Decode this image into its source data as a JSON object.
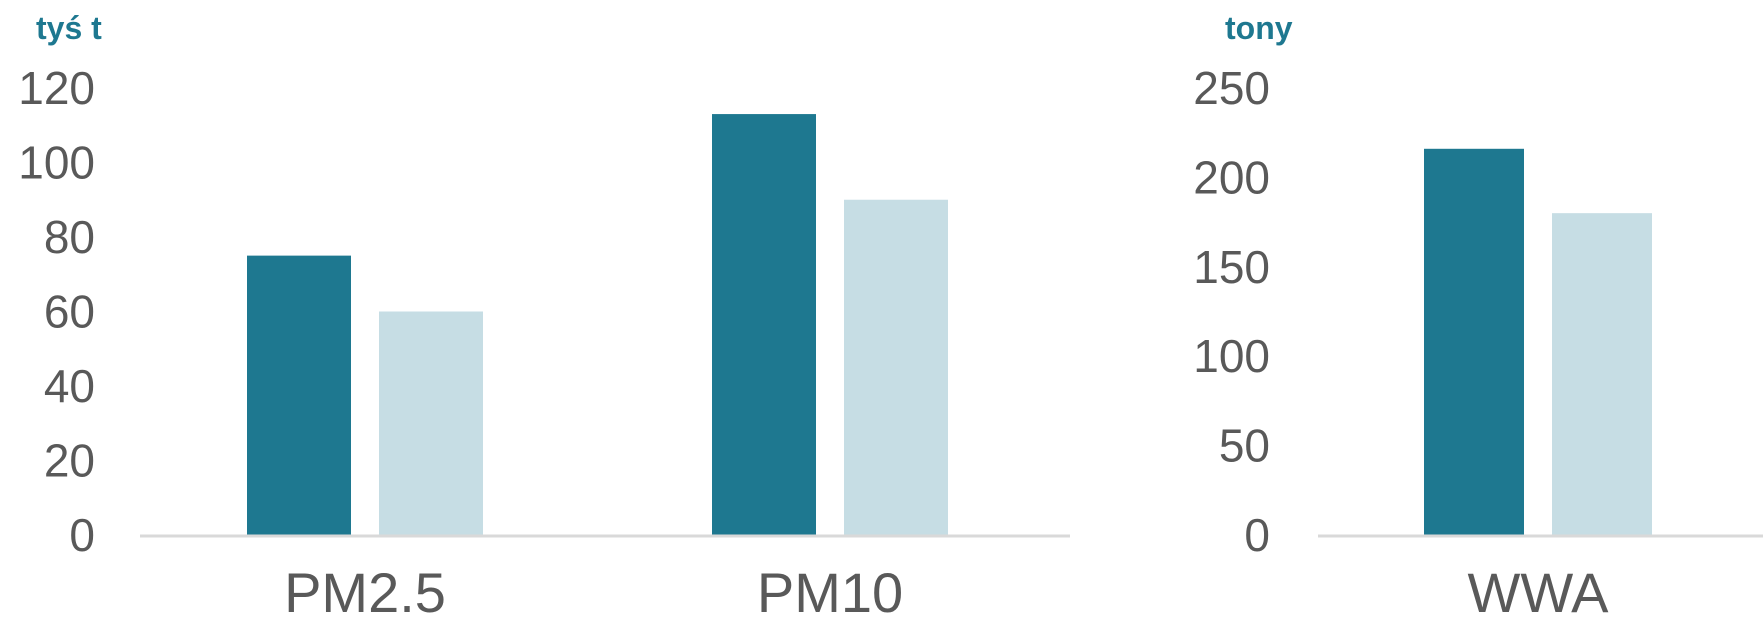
{
  "colors": {
    "series_dark": "#1e7890",
    "series_light": "#c6dde4",
    "axis_line": "#d9d9d9",
    "unit_text": "#1e7890",
    "tick_text": "#595959"
  },
  "chart_data": [
    {
      "type": "bar",
      "ylabel": "tyś t",
      "categories": [
        "PM2.5",
        "PM10"
      ],
      "series": [
        {
          "values": [
            75,
            113
          ]
        },
        {
          "values": [
            60,
            90
          ]
        }
      ],
      "ylim": [
        0,
        120
      ],
      "yticks": [
        "0",
        "20",
        "40",
        "60",
        "80",
        "100",
        "120"
      ],
      "grid": false
    },
    {
      "type": "bar",
      "ylabel": "tony",
      "categories": [
        "WWA"
      ],
      "series": [
        {
          "values": [
            216
          ]
        },
        {
          "values": [
            180
          ]
        }
      ],
      "ylim": [
        0,
        250
      ],
      "yticks": [
        "0",
        "50",
        "100",
        "150",
        "200",
        "250"
      ],
      "grid": false
    }
  ]
}
